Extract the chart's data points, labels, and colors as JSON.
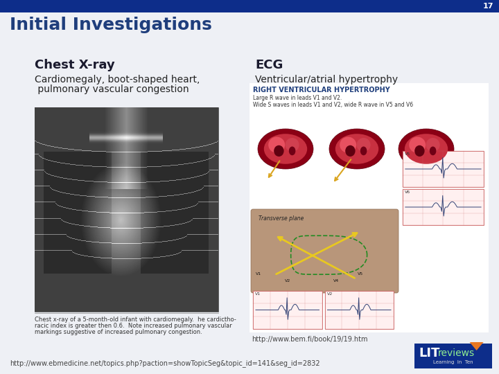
{
  "slide_number": "17",
  "title": "Initial Investigations",
  "title_color": "#1F3E7C",
  "title_fontsize": 18,
  "header_bar_color": "#0D2D8A",
  "header_bar_height": 18,
  "background_color": "#EEF0F5",
  "col1_header": "Chest X-ray",
  "col2_header": "ECG",
  "col_header_fontsize": 13,
  "col_header_color": "#1A1A2E",
  "col1_text_line1": "Cardiomegaly, boot-shaped heart,",
  "col1_text_line2": " pulmonary vascular congestion",
  "col2_text": "Ventricular/atrial hypertrophy",
  "col_text_fontsize": 10,
  "col_text_color": "#222222",
  "footer_url": "http://www.ebmedicine.net/topics.php?paction=showTopicSeg&topic_id=141&seg_id=2832",
  "footer_fontsize": 7,
  "footer_color": "#444444",
  "ecg_url": "http://www.bem.fi/book/19/19.htm",
  "ecg_url_fontsize": 7,
  "xray_caption_line1": "Chest x-ray of a 5-month-old infant with cardiomegaly.  he cardictho-",
  "xray_caption_line2": "racic index is greater then 0.6.  Note increased pulmonary vascular",
  "xray_caption_line3": "markings suggestive of increased pulmonary congestion.",
  "xray_caption_fontsize": 6,
  "xray_caption_color": "#333333",
  "ecg_title_text": "RIGHT VENTRICULAR HYPERTROPHY",
  "ecg_sub1": "Large R wave in leads V1 and V2.",
  "ecg_sub2": "Wide S waves in leads V1 and V2, wide R wave in V5 and V6",
  "slide_num_color": "#FFFFFF",
  "slide_num_fontsize": 8,
  "litreviews_bg": "#0D2D8A",
  "orange_color": "#E87722"
}
